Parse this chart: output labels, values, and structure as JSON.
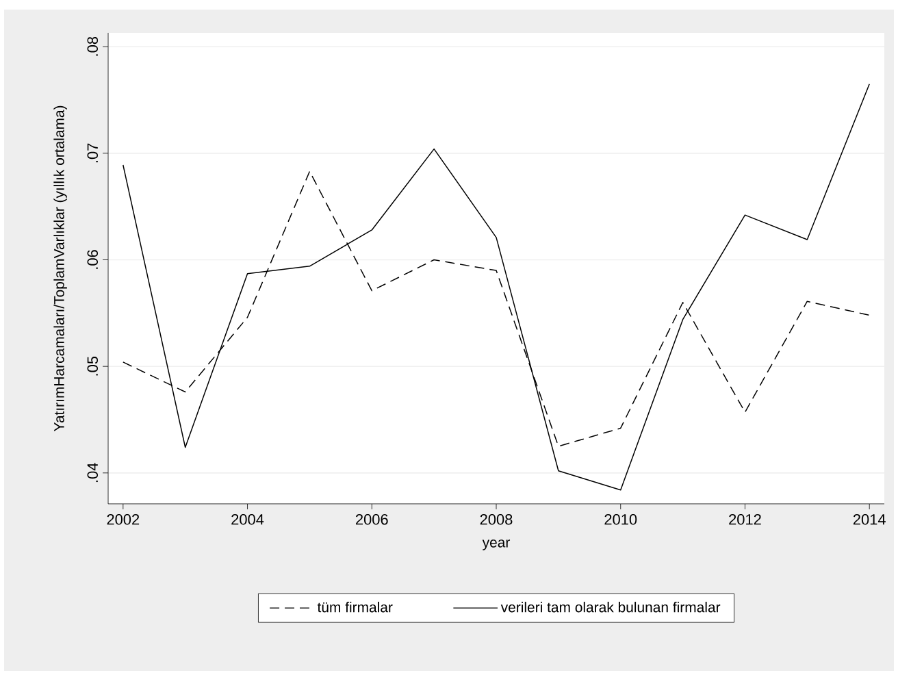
{
  "chart_data": {
    "type": "line",
    "xlabel": "year",
    "ylabel": "YatırımHarcamaları/ToplamVarlıklar (yıllık ortalama)",
    "x": [
      2002,
      2003,
      2004,
      2005,
      2006,
      2007,
      2008,
      2009,
      2010,
      2011,
      2012,
      2013,
      2014
    ],
    "series": [
      {
        "name": "tüm firmalar",
        "color": "#000000",
        "line_style": "dashed",
        "values": [
          0.0504,
          0.0476,
          0.0546,
          0.0683,
          0.0571,
          0.06,
          0.059,
          0.0425,
          0.0442,
          0.056,
          0.0457,
          0.0561,
          0.0548
        ]
      },
      {
        "name": "verileri tam olarak bulunan firmalar",
        "color": "#000000",
        "line_style": "solid",
        "values": [
          0.0689,
          0.0424,
          0.0587,
          0.0594,
          0.0628,
          0.0704,
          0.0621,
          0.0402,
          0.0384,
          0.0544,
          0.0642,
          0.0619,
          0.0765
        ]
      }
    ],
    "xlim": [
      2001.76,
      2014.24
    ],
    "ylim": [
      0.0371,
      0.0813
    ],
    "xticks": [
      2002,
      2004,
      2006,
      2008,
      2010,
      2012,
      2014
    ],
    "yticks": [
      {
        "value": 0.04,
        "label": ".04"
      },
      {
        "value": 0.05,
        "label": ".05"
      },
      {
        "value": 0.06,
        "label": ".06"
      },
      {
        "value": 0.07,
        "label": ".07"
      },
      {
        "value": 0.08,
        "label": ".08"
      }
    ],
    "grid": "y",
    "legend": "bottom",
    "marker": "none"
  }
}
